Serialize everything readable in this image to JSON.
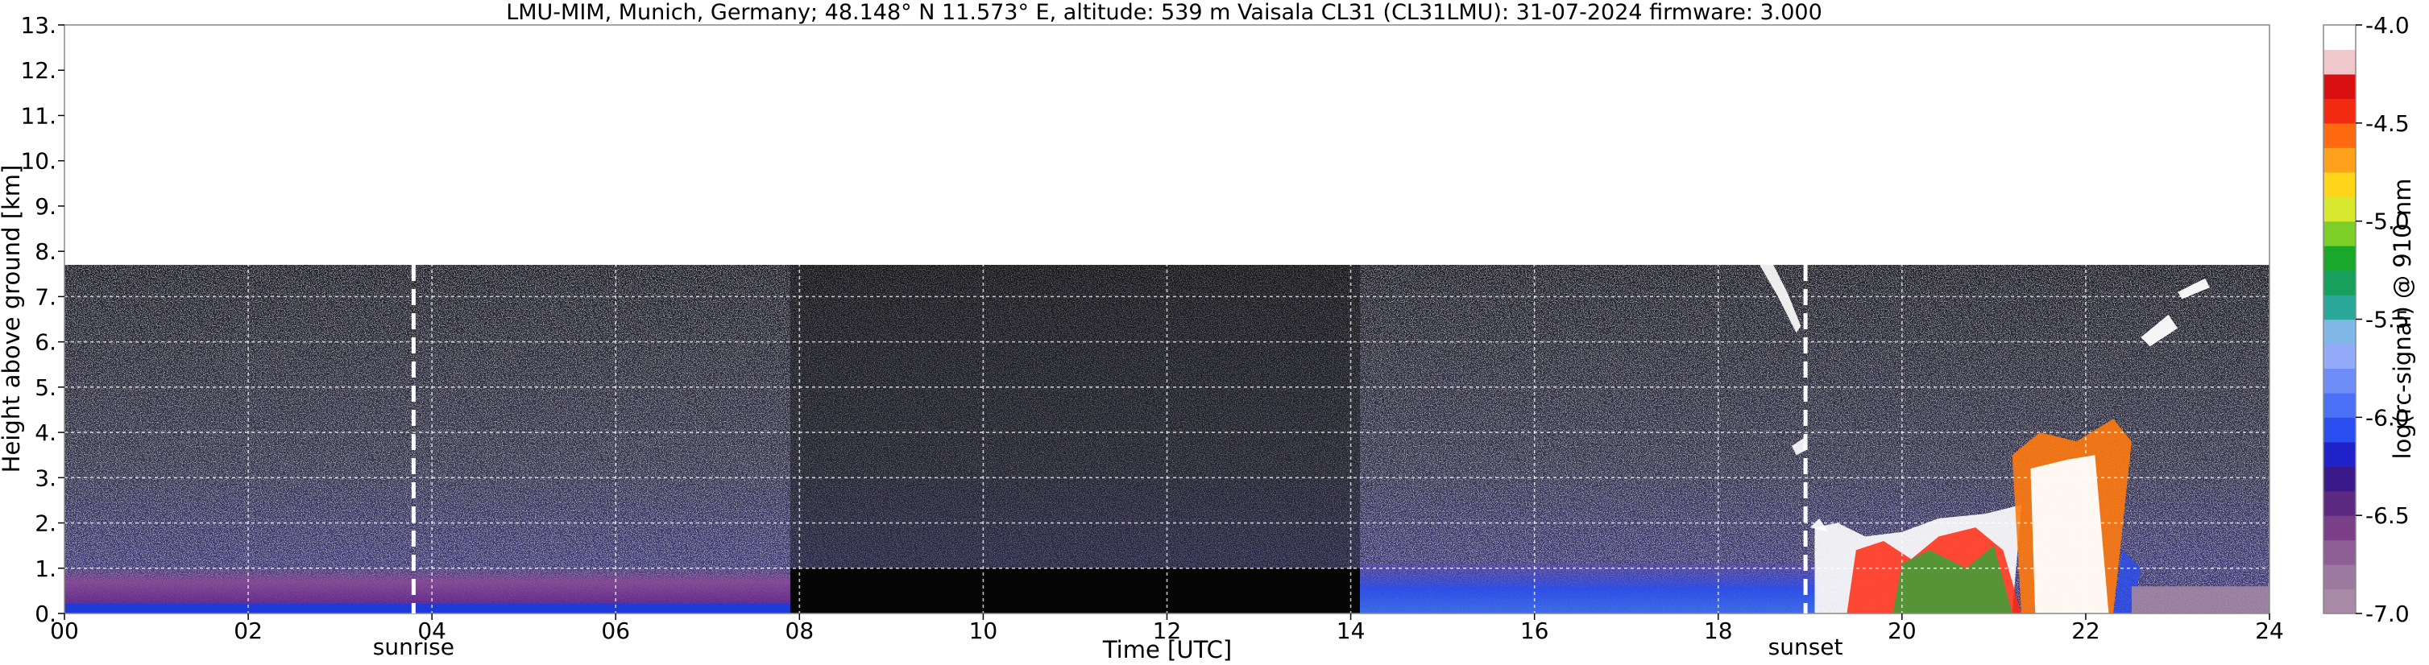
{
  "chart_data": {
    "type": "heatmap",
    "title": "LMU-MIM, Munich, Germany; 48.148° N 11.573° E, altitude: 539 m    Vaisala CL31 (CL31LMU): 31-07-2024    firmware: 3.000",
    "xlabel": "Time [UTC]",
    "ylabel": "Height above ground [km]",
    "xlim": [
      0,
      24
    ],
    "ylim": [
      0,
      13
    ],
    "x_ticks": [
      "00",
      "02",
      "04",
      "06",
      "08",
      "10",
      "12",
      "14",
      "16",
      "18",
      "20",
      "22",
      "24"
    ],
    "y_ticks": [
      "0.",
      "1.",
      "2.",
      "3.",
      "4.",
      "5.",
      "6.",
      "7.",
      "8.",
      "9.",
      "10.",
      "11.",
      "12.",
      "13."
    ],
    "grid": true,
    "colorbar": {
      "label": "log(rc-signal) @ 910 nm",
      "range": [
        -7.0,
        -4.0
      ],
      "ticks": [
        "-4.0",
        "-4.5",
        "-5.0",
        "-5.5",
        "-6.0",
        "-6.5",
        "-7.0"
      ],
      "colors": [
        "#a78aa6",
        "#9c7aa0",
        "#8d5f94",
        "#7a3f87",
        "#5c2a80",
        "#3a1a8a",
        "#1f22c8",
        "#2a4ef0",
        "#4b6ff5",
        "#6f8df7",
        "#94aaf8",
        "#7fb8e6",
        "#29a89a",
        "#17a05c",
        "#19a82a",
        "#7ccf26",
        "#d8e82e",
        "#ffd51c",
        "#ffa11a",
        "#ff6a10",
        "#f22a10",
        "#d81010",
        "#f0c8cc",
        "#ffffff"
      ]
    },
    "data_top_km": 7.7,
    "no_signal_periods_utc": [
      [
        7.9,
        14.1
      ]
    ],
    "annotations": [
      {
        "text": "sunrise",
        "x": 3.8
      },
      {
        "text": "sunset",
        "x": 18.95
      }
    ]
  }
}
